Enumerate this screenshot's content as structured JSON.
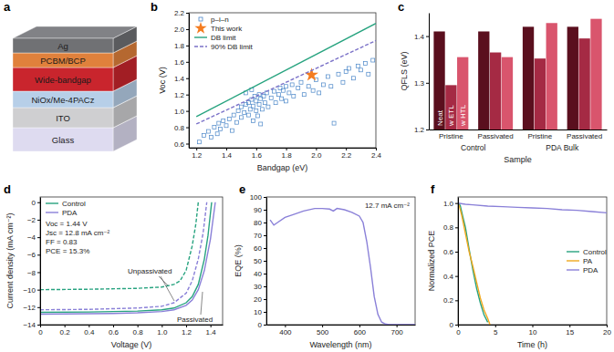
{
  "diagram": {
    "panel": "a",
    "layers": [
      {
        "label": "Ag",
        "color": "#707174"
      },
      {
        "label": "PCBM/BCP",
        "color": "#e0813c"
      },
      {
        "label": "Wide-bandgap",
        "color": "#c9252d"
      },
      {
        "label": "NiOx/Me-4PACz",
        "color": "#b7cfe8"
      },
      {
        "label": "ITO",
        "color": "#cfcfd1"
      },
      {
        "label": "Glass",
        "color": "#dedbf0"
      }
    ]
  },
  "chart_data": [
    {
      "panel": "b",
      "type": "scatter",
      "x_label": "Bandgap (eV)",
      "y_label": "Voc (V)",
      "xlim": [
        1.15,
        2.4
      ],
      "ylim": [
        0.55,
        2.2
      ],
      "xticks": [
        1.2,
        1.4,
        1.6,
        1.8,
        {
          "value": 2,
          "label": "2.0"
        },
        2.2,
        2.4
      ],
      "yticks": [
        0.6,
        0.8,
        {
          "value": 1,
          "label": "1.0"
        },
        1.2,
        1.4,
        1.6,
        1.8,
        {
          "value": 2,
          "label": "2.0"
        },
        2.2
      ],
      "legend": "top left",
      "series": [
        {
          "name": "p–i–n",
          "type": "scatter",
          "marker": "square",
          "color": "#4a86c8",
          "x": [
            1.22,
            1.25,
            1.28,
            1.3,
            1.32,
            1.34,
            1.35,
            1.36,
            1.38,
            1.4,
            1.42,
            1.44,
            1.45,
            1.47,
            1.48,
            1.5,
            1.5,
            1.52,
            1.53,
            1.55,
            1.55,
            1.56,
            1.57,
            1.58,
            1.58,
            1.59,
            1.6,
            1.6,
            1.61,
            1.62,
            1.62,
            1.63,
            1.64,
            1.65,
            1.66,
            1.67,
            1.68,
            1.7,
            1.72,
            1.73,
            1.75,
            1.76,
            1.77,
            1.78,
            1.8,
            1.8,
            1.82,
            1.84,
            1.85,
            1.88,
            1.9,
            1.92,
            1.95,
            1.98,
            2.0,
            2.02,
            2.05,
            2.08,
            2.1,
            2.12,
            2.15,
            2.18,
            2.2,
            2.22,
            2.25,
            2.28,
            2.3,
            2.33,
            2.35,
            2.38,
            1.57,
            1.63,
            1.53
          ],
          "values": [
            0.62,
            0.7,
            0.75,
            0.68,
            0.8,
            0.72,
            0.85,
            0.78,
            0.88,
            0.82,
            0.9,
            0.76,
            0.95,
            0.86,
            1.0,
            0.92,
            1.05,
            0.98,
            1.08,
            0.95,
            1.1,
            1.02,
            1.14,
            0.88,
            1.06,
            1.18,
            1.0,
            1.12,
            0.94,
            1.08,
            1.2,
            1.15,
            1.02,
            1.18,
            1.1,
            1.22,
            1.05,
            1.16,
            1.24,
            1.1,
            1.2,
            1.28,
            1.15,
            1.25,
            1.3,
            1.12,
            1.22,
            1.32,
            1.18,
            1.28,
            1.35,
            1.2,
            1.3,
            1.25,
            1.38,
            1.22,
            1.32,
            1.42,
            1.3,
            0.85,
            1.45,
            1.35,
            1.48,
            1.52,
            1.4,
            1.55,
            1.5,
            1.58,
            1.45,
            1.62,
            1.26,
            0.84,
            1.22
          ]
        },
        {
          "name": "This work",
          "type": "scatter",
          "marker": "star",
          "color": "#f47c20",
          "x": [
            1.97
          ],
          "values": [
            1.44
          ]
        },
        {
          "name": "DB limit",
          "type": "line",
          "line_style": "solid",
          "color": "#27a37f",
          "x": [
            1.2,
            2.4
          ],
          "values": [
            0.93,
            2.07
          ]
        },
        {
          "name": "90% DB limit",
          "type": "line",
          "line_style": "dashed",
          "color": "#7b72c8",
          "x": [
            1.2,
            2.4
          ],
          "values": [
            0.84,
            1.86
          ]
        }
      ]
    },
    {
      "panel": "c",
      "type": "bar",
      "x_label": "Sample",
      "y_label": "QFLS (eV)",
      "categories": [
        "Pristine",
        "Passivated",
        "Pristine",
        "Passivated"
      ],
      "groups": [
        "Control",
        "PDA Bulk"
      ],
      "ylim": [
        1.2,
        1.45
      ],
      "yticks": [
        1.2,
        1.3,
        1.4
      ],
      "series": [
        {
          "name": "Neat",
          "color": "#5a0f1e",
          "values": [
            1.41,
            1.41,
            1.42,
            1.42
          ]
        },
        {
          "name": "w ETL",
          "color": "#a52a44",
          "values": [
            1.295,
            1.365,
            1.352,
            1.395
          ]
        },
        {
          "name": "w HTL",
          "color": "#d9556d",
          "values": [
            1.355,
            1.355,
            1.428,
            1.437
          ]
        }
      ]
    },
    {
      "panel": "d",
      "type": "line",
      "x_label": "Voltage (V)",
      "y_label": "Current density (mA cm⁻²)",
      "xlim": [
        0,
        1.5
      ],
      "ylim": [
        -14,
        0.6
      ],
      "xticks": [
        0,
        0.2,
        0.4,
        0.6,
        0.8,
        {
          "value": 1,
          "label": "1.0"
        },
        1.2,
        1.4
      ],
      "yticks": [
        {
          "value": -14,
          "label": "−14"
        },
        {
          "value": -12,
          "label": "−12"
        },
        {
          "value": -10,
          "label": "−10"
        },
        {
          "value": -8,
          "label": "−8"
        },
        {
          "value": -6,
          "label": "−6"
        },
        {
          "value": -4,
          "label": "−4"
        },
        {
          "value": -2,
          "label": "−2"
        },
        0
      ],
      "legend": "top left",
      "legend_note": [
        "Voc = 1.44 V",
        "Jsc = 12.8 mA cm⁻²",
        "FF = 0.83",
        "PCE = 15.3%"
      ],
      "annotations": [
        "Unpassivated",
        "Passivated"
      ],
      "series": [
        {
          "name": "Control",
          "line_style": "solid",
          "color": "#27a37f",
          "x": [
            0,
            0.4,
            0.8,
            1.0,
            1.1,
            1.2,
            1.25,
            1.3,
            1.35,
            1.38,
            1.41
          ],
          "values": [
            -12.6,
            -12.55,
            -12.45,
            -12.3,
            -12.1,
            -11.5,
            -10.8,
            -9.4,
            -6.5,
            -3.8,
            0
          ]
        },
        {
          "name": "PDA",
          "line_style": "solid",
          "color": "#8a80d8",
          "x": [
            0,
            0.2,
            0.4,
            0.6,
            0.8,
            1.0,
            1.1,
            1.2,
            1.25,
            1.3,
            1.35,
            1.4,
            1.44
          ],
          "values": [
            -12.8,
            -12.78,
            -12.75,
            -12.72,
            -12.65,
            -12.5,
            -12.3,
            -11.8,
            -11.2,
            -10.0,
            -7.8,
            -4.2,
            0
          ]
        },
        {
          "name": "Control",
          "line_style": "dashed",
          "color": "#27a37f",
          "x": [
            0,
            0.4,
            0.8,
            1.0,
            1.1,
            1.15,
            1.2,
            1.25,
            1.28,
            1.3
          ],
          "values": [
            -10.0,
            -9.95,
            -9.85,
            -9.7,
            -9.4,
            -9.0,
            -7.8,
            -5.0,
            -2.5,
            0
          ]
        },
        {
          "name": "PDA",
          "line_style": "dashed",
          "color": "#8a80d8",
          "x": [
            0,
            0.4,
            0.8,
            1.0,
            1.1,
            1.2,
            1.25,
            1.3,
            1.34,
            1.37
          ],
          "values": [
            -12.3,
            -12.25,
            -12.1,
            -11.9,
            -11.5,
            -10.4,
            -9.0,
            -6.5,
            -3.5,
            0
          ]
        }
      ]
    },
    {
      "panel": "e",
      "type": "line",
      "x_label": "Wavelength (nm)",
      "y_label": "EQE (%)",
      "xlim": [
        350,
        750
      ],
      "ylim": [
        0,
        100
      ],
      "xticks": [
        400,
        500,
        600,
        700
      ],
      "yticks": [
        0,
        10,
        20,
        30,
        40,
        50,
        60,
        70,
        80,
        90,
        100
      ],
      "annotations": [
        "12.7 mA cm⁻²"
      ],
      "series": [
        {
          "line_style": "solid",
          "color": "#8a80d8",
          "x": [
            360,
            370,
            380,
            400,
            420,
            450,
            480,
            500,
            520,
            530,
            540,
            560,
            580,
            600,
            610,
            620,
            630,
            640,
            650,
            660,
            670,
            680,
            700,
            750
          ],
          "values": [
            82,
            78,
            80,
            84,
            86,
            89,
            91,
            91,
            90.5,
            89,
            91,
            90,
            88,
            85,
            80,
            65,
            45,
            22,
            8,
            2,
            0.5,
            0,
            0,
            0
          ]
        }
      ]
    },
    {
      "panel": "f",
      "type": "line",
      "x_label": "Time (h)",
      "y_label": "Normalized PCE",
      "xlim": [
        0,
        20
      ],
      "ylim": [
        0,
        1.05
      ],
      "xticks": [
        0,
        5,
        10,
        15,
        20
      ],
      "yticks": [
        0,
        0.2,
        0.4,
        0.6,
        0.8,
        {
          "value": 1,
          "label": "1.0"
        }
      ],
      "legend": "center right",
      "series": [
        {
          "name": "Control",
          "line_style": "solid",
          "color": "#27a37f",
          "x": [
            0,
            0.3,
            0.6,
            1.0,
            1.5,
            2.0,
            2.5,
            3.0,
            3.5,
            4.0
          ],
          "values": [
            1.0,
            0.98,
            0.9,
            0.8,
            0.62,
            0.45,
            0.3,
            0.18,
            0.08,
            0.02
          ]
        },
        {
          "name": "PA",
          "line_style": "solid",
          "color": "#f0a81e",
          "x": [
            0,
            0.2,
            0.5,
            1.0,
            1.5,
            2.0,
            2.5,
            3.0,
            3.5,
            4.0,
            4.3
          ],
          "values": [
            1.0,
            0.97,
            0.9,
            0.75,
            0.6,
            0.48,
            0.35,
            0.22,
            0.12,
            0.05,
            0
          ]
        },
        {
          "name": "PDA",
          "line_style": "solid",
          "color": "#8a80d8",
          "x": [
            0,
            1,
            2,
            4,
            6,
            8,
            10,
            12,
            14,
            16,
            18,
            20
          ],
          "values": [
            1.0,
            0.99,
            0.985,
            0.975,
            0.97,
            0.965,
            0.96,
            0.955,
            0.945,
            0.94,
            0.93,
            0.92
          ]
        }
      ]
    }
  ]
}
